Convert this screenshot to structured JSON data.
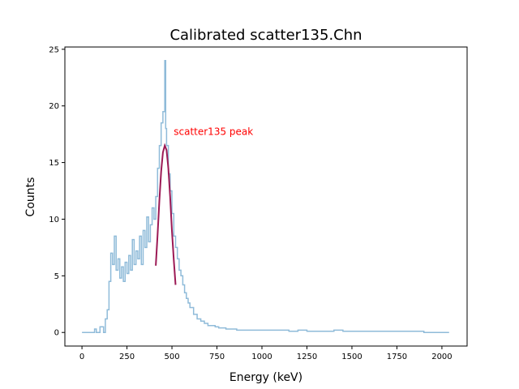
{
  "chart_data": {
    "type": "line",
    "title": "Calibrated scatter135.Chn",
    "xlabel": "Energy (keV)",
    "ylabel": "Counts",
    "xlim": [
      -95,
      2140
    ],
    "ylim": [
      -1.2,
      25.2
    ],
    "xticks": [
      0,
      250,
      500,
      750,
      1000,
      1250,
      1500,
      1750,
      2000
    ],
    "yticks": [
      0,
      5,
      10,
      15,
      20,
      25
    ],
    "grid": false,
    "annotation": {
      "text": "scatter135 peak",
      "x": 510,
      "y": 17.8,
      "color": "#ff0000"
    },
    "series": [
      {
        "style": "spectrum",
        "color": "#8fbbd9",
        "x": [
          0,
          50,
          70,
          80,
          100,
          120,
          130,
          140,
          150,
          160,
          170,
          180,
          190,
          200,
          210,
          220,
          230,
          240,
          250,
          260,
          270,
          280,
          290,
          300,
          310,
          320,
          330,
          340,
          350,
          360,
          370,
          380,
          390,
          400,
          410,
          420,
          430,
          440,
          450,
          460,
          465,
          470,
          480,
          490,
          500,
          510,
          520,
          530,
          540,
          550,
          560,
          570,
          580,
          590,
          600,
          620,
          640,
          660,
          680,
          700,
          720,
          740,
          760,
          780,
          800,
          830,
          860,
          900,
          950,
          1000,
          1050,
          1100,
          1150,
          1200,
          1250,
          1300,
          1350,
          1400,
          1450,
          1500,
          1550,
          1600,
          1650,
          1700,
          1750,
          1800,
          1850,
          1900,
          1950,
          2000,
          2040
        ],
        "y": [
          0,
          0,
          0.3,
          0,
          0.5,
          0,
          1.2,
          2.0,
          4.5,
          7.0,
          6.0,
          8.5,
          5.5,
          6.5,
          4.8,
          5.8,
          4.5,
          6.2,
          5.2,
          6.8,
          5.5,
          8.2,
          6.0,
          7.2,
          6.5,
          8.5,
          6.0,
          9.0,
          7.5,
          10.2,
          8.0,
          9.5,
          11.0,
          10.0,
          12.0,
          14.5,
          16.5,
          18.5,
          19.5,
          24.0,
          18.0,
          16.5,
          14.0,
          12.5,
          10.5,
          8.5,
          7.5,
          6.5,
          5.5,
          5.0,
          4.2,
          3.5,
          3.0,
          2.6,
          2.2,
          1.6,
          1.2,
          1.0,
          0.8,
          0.6,
          0.6,
          0.5,
          0.4,
          0.4,
          0.3,
          0.3,
          0.2,
          0.2,
          0.2,
          0.2,
          0.2,
          0.2,
          0.1,
          0.2,
          0.1,
          0.1,
          0.1,
          0.2,
          0.1,
          0.1,
          0.1,
          0.1,
          0.1,
          0.1,
          0.1,
          0.1,
          0.1,
          0,
          0,
          0,
          0
        ]
      },
      {
        "style": "fit",
        "color": "#9c1a55",
        "x": [
          410,
          420,
          430,
          440,
          450,
          460,
          470,
          480,
          490,
          500,
          510,
          520
        ],
        "y": [
          5.9,
          8.6,
          11.6,
          14.2,
          15.9,
          16.5,
          16.1,
          14.5,
          12.0,
          9.0,
          6.4,
          4.2
        ]
      }
    ]
  }
}
